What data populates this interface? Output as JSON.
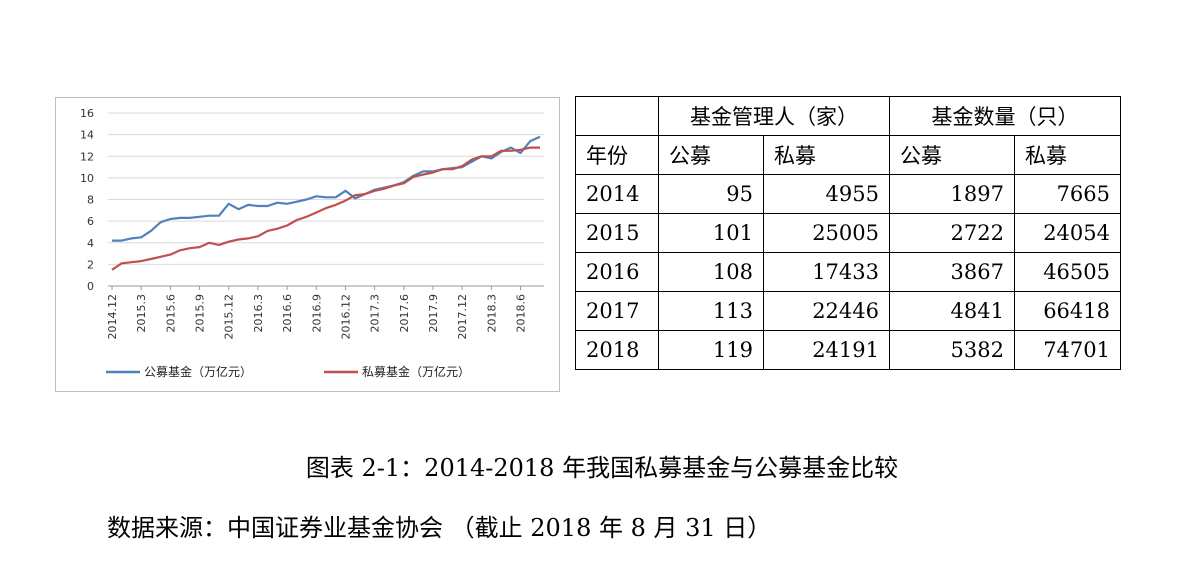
{
  "chart_data": [
    {
      "type": "line",
      "title": "",
      "xlabel": "",
      "ylabel": "",
      "ylim": [
        0,
        16
      ],
      "yticks": [
        0,
        2,
        4,
        6,
        8,
        10,
        12,
        14,
        16
      ],
      "x_tick_labels": [
        "2014.12",
        "2015.3",
        "2015.6",
        "2015.9",
        "2015.12",
        "2016.3",
        "2016.6",
        "2016.9",
        "2016.12",
        "2017.3",
        "2017.6",
        "2017.9",
        "2017.12",
        "2018.3",
        "2018.6"
      ],
      "grid": "horizontal",
      "legend_position": "bottom",
      "series": [
        {
          "name": "公募基金（万亿元）",
          "color": "#4F81BD",
          "values": [
            4.2,
            4.2,
            4.4,
            4.5,
            5.1,
            5.9,
            6.2,
            6.3,
            6.3,
            6.4,
            6.5,
            6.5,
            7.6,
            7.1,
            7.5,
            7.4,
            7.4,
            7.7,
            7.6,
            7.8,
            8.0,
            8.3,
            8.2,
            8.2,
            8.8,
            8.1,
            8.5,
            8.9,
            9.1,
            9.3,
            9.6,
            10.2,
            10.6,
            10.6,
            10.8,
            10.9,
            11.0,
            11.5,
            12.0,
            11.8,
            12.4,
            12.8,
            12.3,
            13.4,
            13.8
          ]
        },
        {
          "name": "私募基金（万亿元）",
          "color": "#C0504D",
          "values": [
            1.5,
            2.1,
            2.2,
            2.3,
            2.5,
            2.7,
            2.9,
            3.3,
            3.5,
            3.6,
            4.0,
            3.8,
            4.1,
            4.3,
            4.4,
            4.6,
            5.1,
            5.3,
            5.6,
            6.1,
            6.4,
            6.8,
            7.2,
            7.5,
            7.9,
            8.4,
            8.5,
            8.8,
            9.0,
            9.3,
            9.5,
            10.1,
            10.3,
            10.5,
            10.8,
            10.8,
            11.1,
            11.7,
            12.0,
            12.0,
            12.5,
            12.5,
            12.6,
            12.8,
            12.8
          ]
        }
      ]
    },
    {
      "type": "table",
      "header_row_1": [
        "",
        "基金管理人（家）",
        "基金数量（只）"
      ],
      "header_row_2": [
        "年份",
        "公募",
        "私募",
        "公募",
        "私募"
      ],
      "rows": [
        [
          "2014",
          "95",
          "4955",
          "1897",
          "7665"
        ],
        [
          "2015",
          "101",
          "25005",
          "2722",
          "24054"
        ],
        [
          "2016",
          "108",
          "17433",
          "3867",
          "46505"
        ],
        [
          "2017",
          "113",
          "22446",
          "4841",
          "66418"
        ],
        [
          "2018",
          "119",
          "24191",
          "5382",
          "74701"
        ]
      ]
    }
  ],
  "caption": "图表 2-1：2014-2018 年我国私募基金与公募基金比较",
  "source": "数据来源：中国证券业基金协会 （截止 2018 年 8 月 31 日）"
}
